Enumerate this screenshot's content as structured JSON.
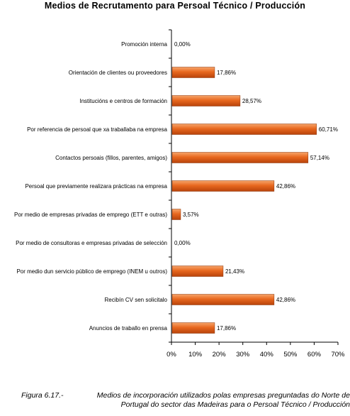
{
  "chart_data": {
    "type": "bar",
    "orientation": "horizontal",
    "title": "Medios de Recrutamento para Persoal Técnico / Producción",
    "categories": [
      "Promoción interna",
      "Orientación de clientes ou proveedores",
      "Institucións e centros de formación",
      "Por referencia de persoal que xa traballaba na empresa",
      "Contactos persoais (fillos, parentes, amigos)",
      "Persoal que previamente realizara prácticas na empresa",
      "Por medio de empresas privadas de emprego (ETT e outras)",
      "Por medio  de consultoras e empresas privadas de selección",
      "Por medio dun servicio público de emprego (INEM u outros)",
      "Recibín CV sen solicitalo",
      "Anuncios de traballo en prensa"
    ],
    "values": [
      0.0,
      17.86,
      28.57,
      60.71,
      57.14,
      42.86,
      3.57,
      0.0,
      21.43,
      42.86,
      17.86
    ],
    "value_labels": [
      "0,00%",
      "17,86%",
      "28,57%",
      "60,71%",
      "57,14%",
      "42,86%",
      "3,57%",
      "0,00%",
      "21,43%",
      "42,86%",
      "17,86%"
    ],
    "xlim": [
      0,
      70
    ],
    "x_ticks": [
      "0%",
      "10%",
      "20%",
      "30%",
      "40%",
      "50%",
      "60%",
      "70%"
    ],
    "x_unit": "%",
    "grid": false,
    "legend": "none",
    "bar_color": "#e5631a"
  },
  "caption": {
    "figure": "Figura 6.17.-",
    "text": "Medios de incorporación utilizados polas empresas preguntadas do Norte de Portugal do sector das Madeiras para o Persoal Técnico / Producción"
  }
}
